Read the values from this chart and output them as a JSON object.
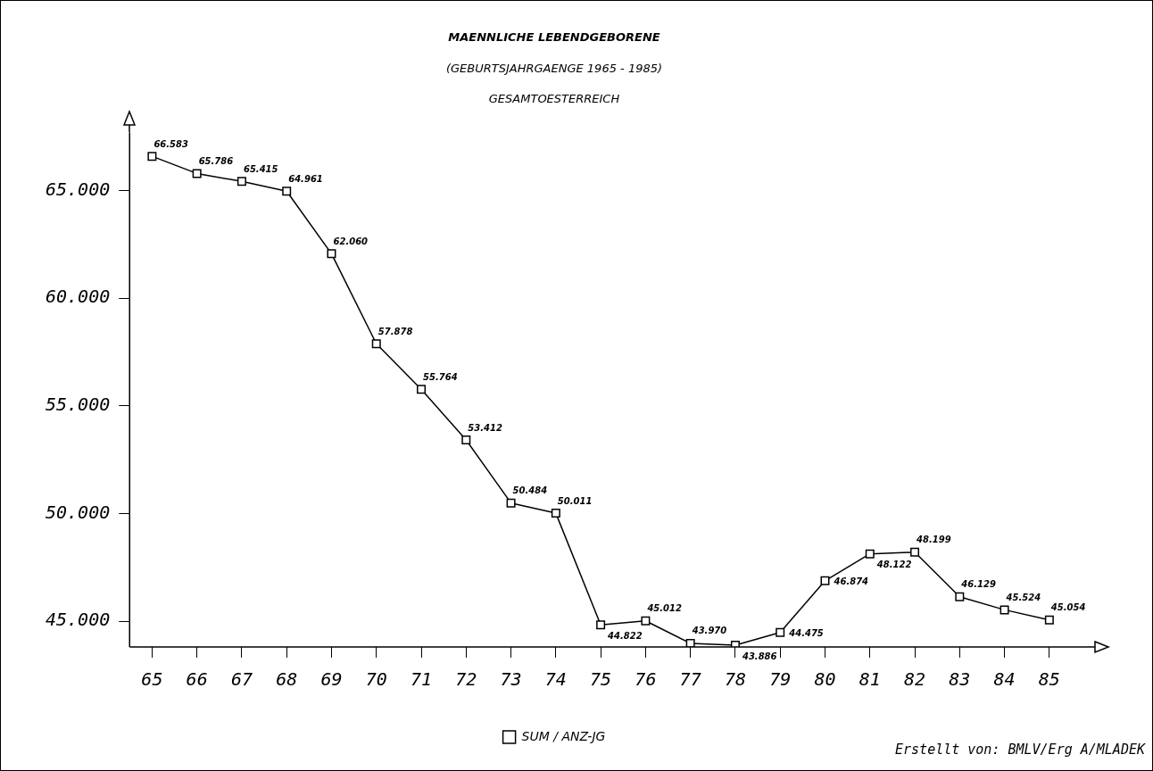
{
  "chart_data": {
    "type": "line",
    "title": "MAENNLICHE LEBENDGEBORENE",
    "subtitle": "(GEBURTSJAHRGAENGE 1965 - 1985)\nGESAMTOESTERREICH",
    "categories": [
      "65",
      "66",
      "67",
      "68",
      "69",
      "70",
      "71",
      "72",
      "73",
      "74",
      "75",
      "76",
      "77",
      "78",
      "79",
      "80",
      "81",
      "82",
      "83",
      "84",
      "85"
    ],
    "series": [
      {
        "name": "SUM / ANZ-JG",
        "color": "#000000",
        "values": [
          66583,
          65786,
          65415,
          64961,
          62060,
          57878,
          55764,
          53412,
          50484,
          50011,
          44822,
          45012,
          43970,
          43886,
          44475,
          46874,
          48122,
          48199,
          46129,
          45524,
          45054
        ],
        "value_labels": [
          "66.583",
          "65.786",
          "65.415",
          "64.961",
          "62.060",
          "57.878",
          "55.764",
          "53.412",
          "50.484",
          "50.011",
          "44.822",
          "45.012",
          "43.970",
          "43.886",
          "44.475",
          "46.874",
          "48.122",
          "48.199",
          "46.129",
          "45.524",
          "45.054"
        ]
      }
    ],
    "ylim": [
      43800,
      67700
    ],
    "yticks": [
      {
        "value": 45000,
        "label": "45.000"
      },
      {
        "value": 50000,
        "label": "50.000"
      },
      {
        "value": 55000,
        "label": "55.000"
      },
      {
        "value": 60000,
        "label": "60.000"
      },
      {
        "value": 65000,
        "label": "65.000"
      }
    ],
    "marker": "square",
    "line_style": "solid",
    "legend": "bottom",
    "annotations": [
      "Erstellt von: BMLV/Erg A/MLADEK"
    ]
  }
}
